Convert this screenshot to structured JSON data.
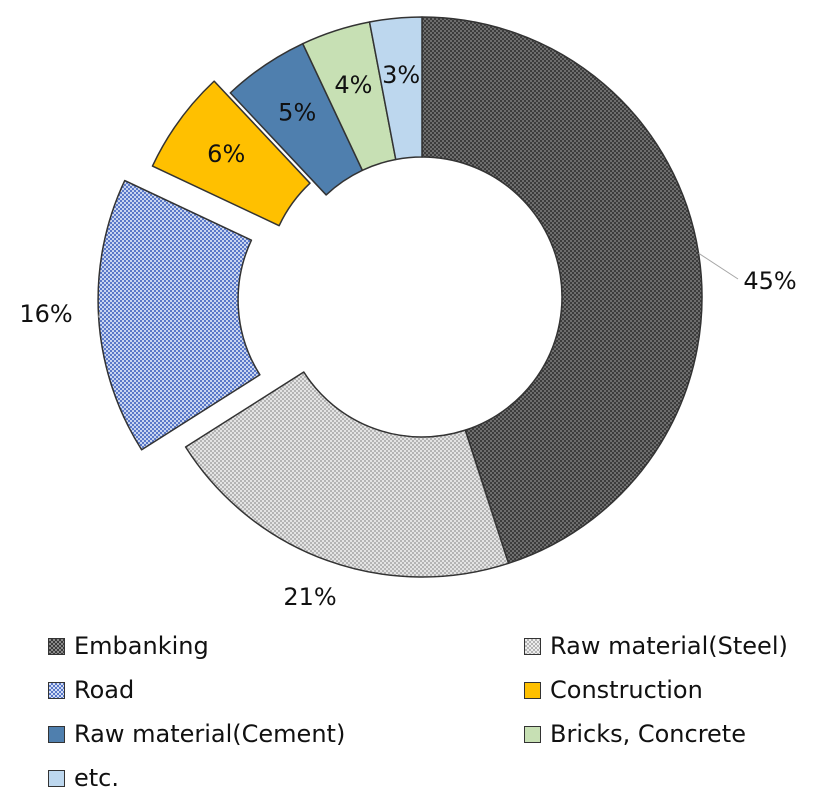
{
  "chart_data": {
    "type": "pie",
    "title": "",
    "categories": [
      "Embanking",
      "Raw material(Steel)",
      "Road",
      "Construction",
      "Raw material(Cement)",
      "Bricks, Concrete",
      "etc."
    ],
    "values": [
      45,
      21,
      16,
      6,
      5,
      4,
      3
    ],
    "data_labels": [
      "45%",
      "21%",
      "16%",
      "6%",
      "5%",
      "4%",
      "3%"
    ],
    "colors": [
      "#595959",
      "#c8c8c8",
      "#8ea7dc",
      "#ffc000",
      "#4f7fae",
      "#c7e0b4",
      "#bdd7ee"
    ],
    "fill_styles": [
      "dotted",
      "dotted",
      "dotted",
      "solid",
      "solid",
      "solid",
      "solid"
    ],
    "exploded": [
      "Road",
      "Construction"
    ],
    "donut": true,
    "legend_position": "bottom",
    "legend": [
      "Embanking",
      "Raw material(Steel)",
      "Road",
      "Construction",
      "Raw material(Cement)",
      "Bricks, Concrete",
      "etc."
    ]
  }
}
